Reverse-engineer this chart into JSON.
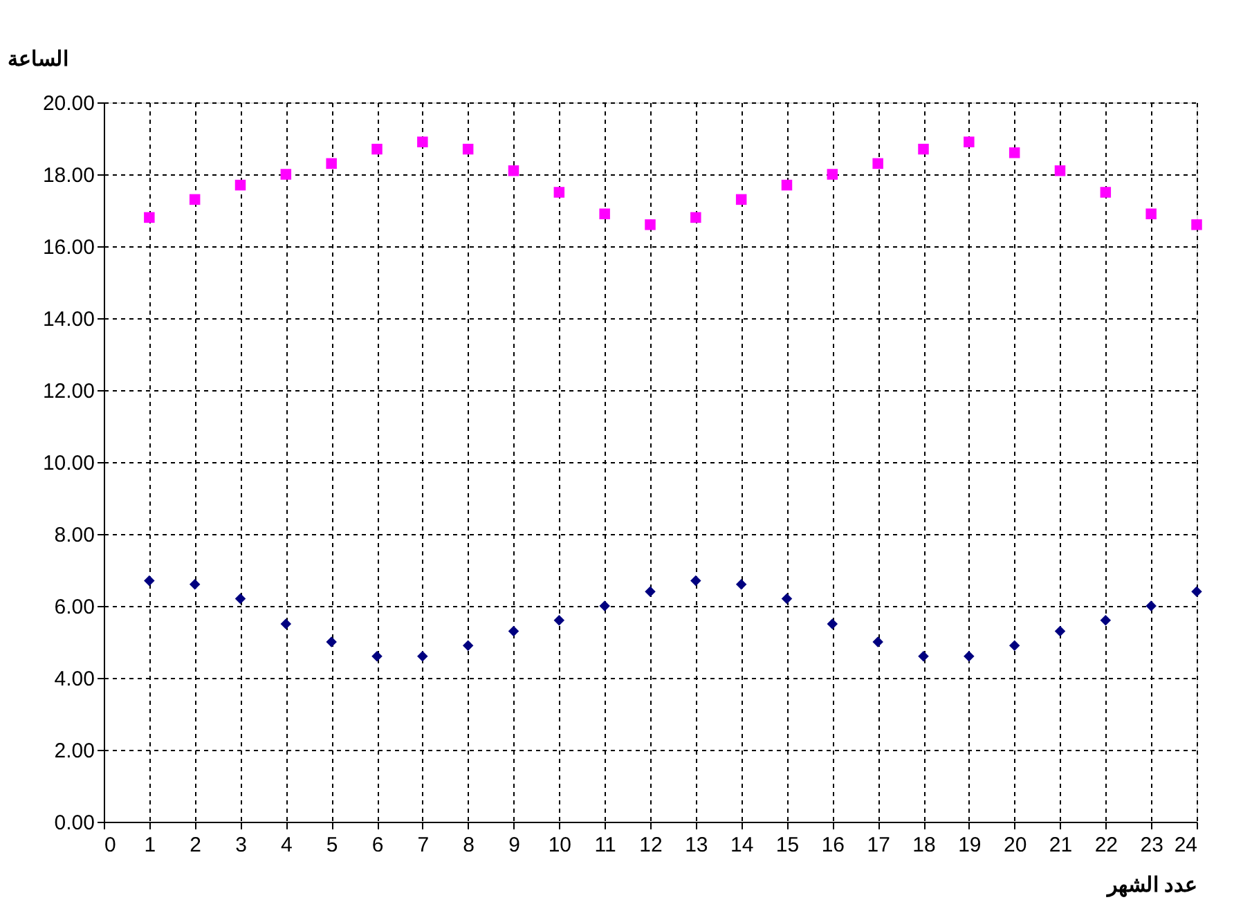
{
  "chart_data": {
    "type": "scatter",
    "xlabel": "عدد الشهر",
    "ylabel": "الساعة",
    "x": [
      1,
      2,
      3,
      4,
      5,
      6,
      7,
      8,
      9,
      10,
      11,
      12,
      13,
      14,
      15,
      16,
      17,
      18,
      19,
      20,
      21,
      22,
      23,
      24
    ],
    "series": [
      {
        "color": "#ff00ff",
        "marker": "square",
        "values": [
          16.8,
          17.3,
          17.7,
          18.0,
          18.3,
          18.7,
          18.9,
          18.7,
          18.1,
          17.5,
          16.9,
          16.6,
          16.8,
          17.3,
          17.7,
          18.0,
          18.3,
          18.7,
          18.9,
          18.6,
          18.1,
          17.5,
          16.9,
          16.6
        ]
      },
      {
        "color": "#000080",
        "marker": "diamond",
        "values": [
          6.7,
          6.6,
          6.2,
          5.5,
          5.0,
          4.6,
          4.6,
          4.9,
          5.3,
          5.6,
          6.0,
          6.4,
          6.7,
          6.6,
          6.2,
          5.5,
          5.0,
          4.6,
          4.6,
          4.9,
          5.3,
          5.6,
          6.0,
          6.4
        ]
      }
    ],
    "xlim": [
      0,
      24
    ],
    "xticks": [
      0,
      1,
      2,
      3,
      4,
      5,
      6,
      7,
      8,
      9,
      10,
      11,
      12,
      13,
      14,
      15,
      16,
      17,
      18,
      19,
      20,
      21,
      22,
      23,
      24
    ],
    "ylim": [
      0,
      20
    ],
    "yticks": [
      {
        "value": 0,
        "label": "0.00"
      },
      {
        "value": 2,
        "label": "2.00"
      },
      {
        "value": 4,
        "label": "4.00"
      },
      {
        "value": 6,
        "label": "6.00"
      },
      {
        "value": 8,
        "label": "8.00"
      },
      {
        "value": 10,
        "label": "10.00"
      },
      {
        "value": 12,
        "label": "12.00"
      },
      {
        "value": 14,
        "label": "14.00"
      },
      {
        "value": 16,
        "label": "16.00"
      },
      {
        "value": 18,
        "label": "18.00"
      },
      {
        "value": 20,
        "label": "20.00"
      }
    ],
    "grid": true,
    "line_style": "dashed"
  }
}
